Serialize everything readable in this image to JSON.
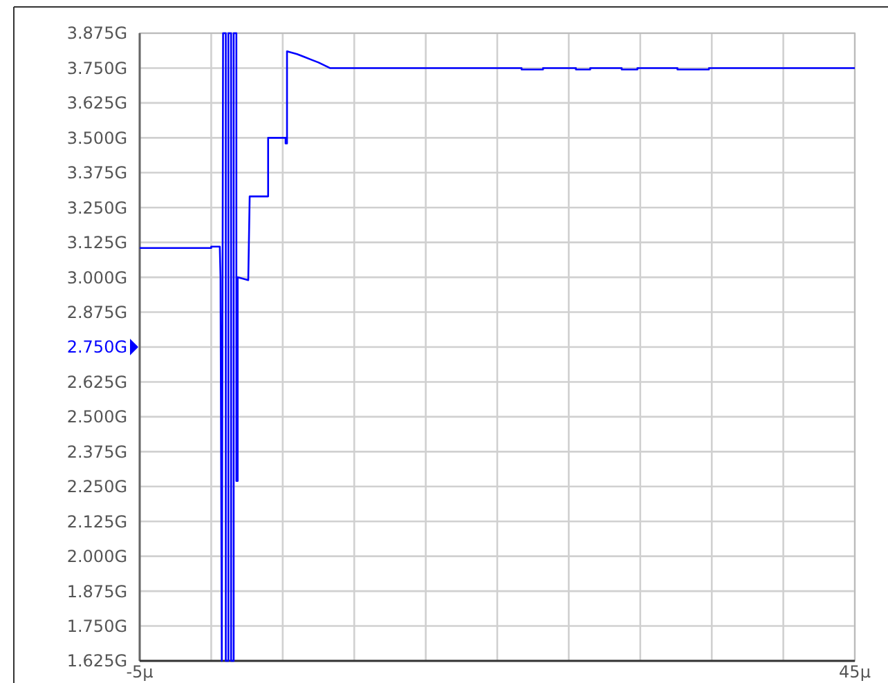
{
  "chart_data": {
    "type": "line",
    "x": [
      -5,
      0,
      0,
      0.6,
      0.65,
      0.74,
      0.83,
      1.02,
      1.02,
      1.2,
      1.2,
      1.39,
      1.39,
      1.57,
      1.57,
      1.76,
      1.76,
      1.85,
      1.85,
      2.59,
      2.69,
      3.98,
      3.98,
      5.2,
      5.2,
      5.3,
      5.3,
      6.0,
      6.5,
      7.0,
      7.5,
      8.3,
      21.7,
      21.7,
      23.2,
      23.2,
      25.5,
      25.5,
      26.5,
      26.5,
      28.7,
      28.7,
      29.8,
      29.8,
      32.6,
      32.6,
      34.8,
      34.8,
      45
    ],
    "series": [
      {
        "color": "#0000ff",
        "values": [
          3.105,
          3.105,
          3.11,
          3.11,
          3.0,
          1.625,
          3.875,
          3.875,
          1.625,
          1.625,
          3.875,
          3.875,
          1.625,
          1.625,
          3.875,
          3.875,
          2.27,
          2.27,
          3.0,
          2.99,
          3.29,
          3.29,
          3.5,
          3.5,
          3.48,
          3.48,
          3.81,
          3.8,
          3.79,
          3.78,
          3.77,
          3.75,
          3.75,
          3.745,
          3.745,
          3.75,
          3.75,
          3.745,
          3.745,
          3.75,
          3.75,
          3.745,
          3.745,
          3.75,
          3.75,
          3.745,
          3.745,
          3.75,
          3.75
        ]
      }
    ],
    "xlim": [
      -5,
      45
    ],
    "xticks": [
      {
        "value": -5,
        "label": "-5µ"
      },
      {
        "value": 0,
        "label": null
      },
      {
        "value": 5,
        "label": null
      },
      {
        "value": 10,
        "label": null
      },
      {
        "value": 15,
        "label": null
      },
      {
        "value": 20,
        "label": null
      },
      {
        "value": 25,
        "label": null
      },
      {
        "value": 30,
        "label": null
      },
      {
        "value": 35,
        "label": null
      },
      {
        "value": 40,
        "label": null
      },
      {
        "value": 45,
        "label": "45µ"
      }
    ],
    "ylim": [
      1.625,
      3.875
    ],
    "yticks": [
      {
        "value": 1.625,
        "label": "1.625G"
      },
      {
        "value": 1.75,
        "label": "1.750G"
      },
      {
        "value": 1.875,
        "label": "1.875G"
      },
      {
        "value": 2.0,
        "label": "2.000G"
      },
      {
        "value": 2.125,
        "label": "2.125G"
      },
      {
        "value": 2.25,
        "label": "2.250G"
      },
      {
        "value": 2.375,
        "label": "2.375G"
      },
      {
        "value": 2.5,
        "label": "2.500G"
      },
      {
        "value": 2.625,
        "label": "2.625G"
      },
      {
        "value": 2.75,
        "label": "2.750G"
      },
      {
        "value": 2.875,
        "label": "2.875G"
      },
      {
        "value": 3.0,
        "label": "3.000G"
      },
      {
        "value": 3.125,
        "label": "3.125G"
      },
      {
        "value": 3.25,
        "label": "3.250G"
      },
      {
        "value": 3.375,
        "label": "3.375G"
      },
      {
        "value": 3.5,
        "label": "3.500G"
      },
      {
        "value": 3.625,
        "label": "3.625G"
      },
      {
        "value": 3.75,
        "label": "3.750G"
      },
      {
        "value": 3.875,
        "label": "3.875G"
      }
    ],
    "grid": true
  }
}
